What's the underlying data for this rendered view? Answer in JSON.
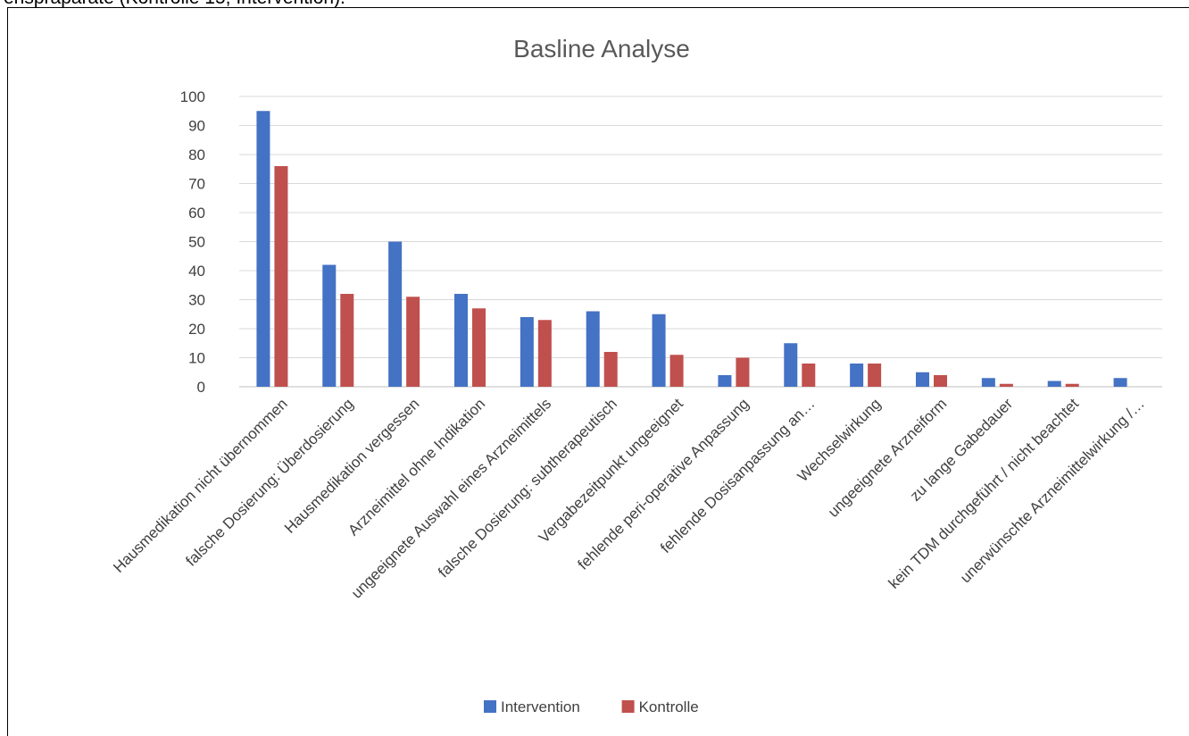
{
  "page": {
    "top_text": "enspräparate (Kontrolle 15, Intervention)."
  },
  "chart_data": {
    "type": "bar",
    "title": "Basline Analyse",
    "xlabel": "",
    "ylabel": "",
    "ylim": [
      0,
      100
    ],
    "yticks": [
      0,
      10,
      20,
      30,
      40,
      50,
      60,
      70,
      80,
      90,
      100
    ],
    "grid": true,
    "legend_position": "bottom",
    "categories": [
      "Hausmedikation nicht übernommen",
      "falsche Dosierung: Überdosierung",
      "Hausmedikation vergessen",
      "Arzneimittel ohne Indikation",
      "ungeeignete Auswahl eines Arzneimittels",
      "falsche Dosierung: subtherapeutisch",
      "Vergabezeitpunkt ungeeignet",
      "fehlende peri-operative Anpassung",
      "fehlende Dosisanpassung an…",
      "Wechselwirkung",
      "ungeeignete Arzneiform",
      "zu lange Gabedauer",
      "kein TDM durchgeführt / nicht beachtet",
      "unerwünschte Arzneimittelwirkung /…"
    ],
    "series": [
      {
        "name": "Intervention",
        "color": "#4472C4",
        "values": [
          95,
          42,
          50,
          32,
          24,
          26,
          25,
          4,
          15,
          8,
          5,
          3,
          2,
          3
        ]
      },
      {
        "name": "Kontrolle",
        "color": "#C0504D",
        "values": [
          76,
          32,
          31,
          27,
          23,
          12,
          11,
          10,
          8,
          8,
          4,
          1,
          1,
          0
        ]
      }
    ]
  }
}
